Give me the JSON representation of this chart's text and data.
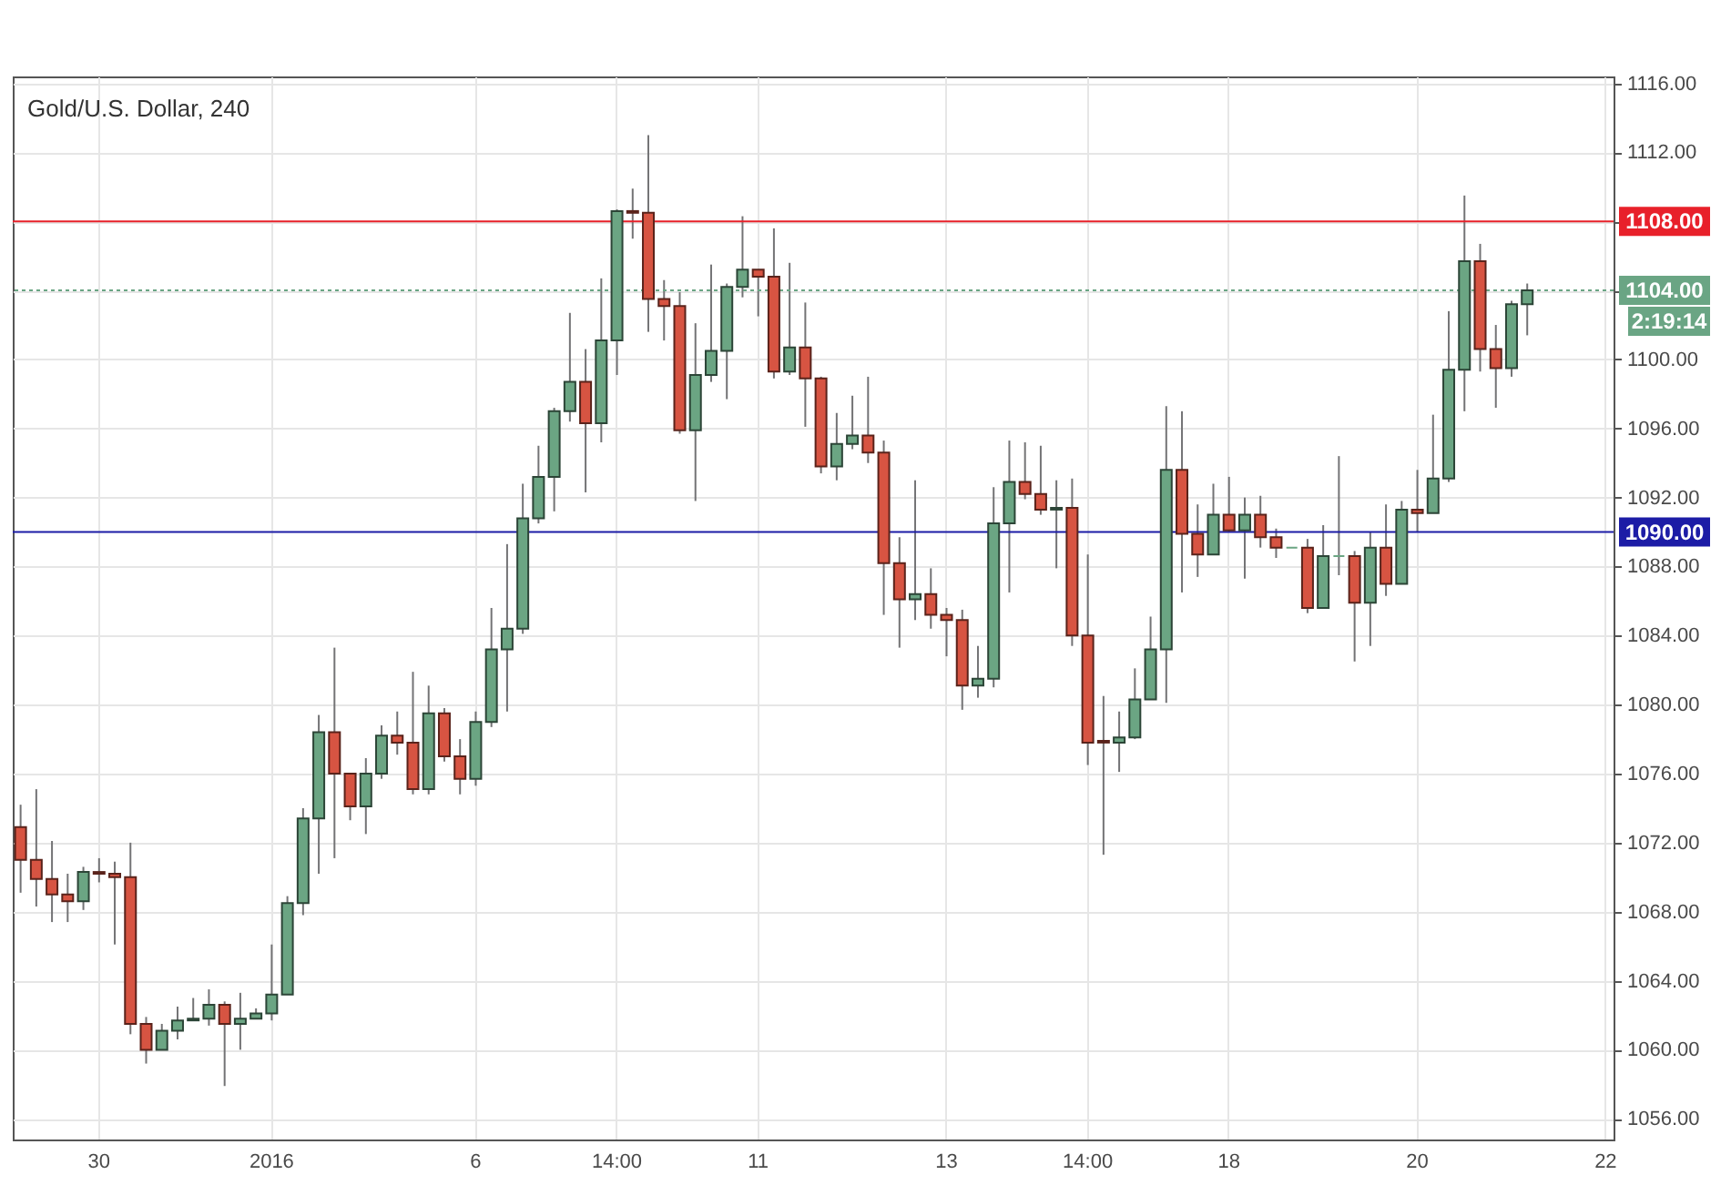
{
  "chart_data": {
    "type": "candlestick",
    "title": "Gold/U.S. Dollar, 240",
    "categories": [
      null,
      null,
      null,
      null,
      null,
      "30",
      null,
      null,
      null,
      null,
      null,
      null,
      null,
      null,
      null,
      null,
      "2016",
      null,
      null,
      null,
      null,
      null,
      null,
      null,
      null,
      null,
      null,
      null,
      null,
      "6",
      null,
      null,
      null,
      null,
      null,
      null,
      null,
      null,
      "14:00",
      null,
      null,
      null,
      null,
      null,
      null,
      null,
      null,
      "11",
      null,
      null,
      null,
      null,
      null,
      null,
      null,
      null,
      null,
      null,
      null,
      "13",
      null,
      null,
      null,
      null,
      null,
      null,
      null,
      null,
      "14:00",
      null,
      null,
      null,
      null,
      null,
      null,
      null,
      null,
      "18",
      null,
      null,
      null,
      null,
      null,
      null,
      null,
      null,
      null,
      null,
      null,
      "20",
      null,
      null,
      null,
      null,
      null,
      null,
      null,
      null,
      null,
      null,
      null,
      "22"
    ],
    "ohlc": [
      [
        1072.9,
        1074.2,
        1069.1,
        1071.0
      ],
      [
        1071.0,
        1075.1,
        1068.3,
        1069.9
      ],
      [
        1069.9,
        1072.1,
        1067.4,
        1069.0
      ],
      [
        1069.0,
        1070.2,
        1067.4,
        1068.6
      ],
      [
        1068.6,
        1070.6,
        1068.1,
        1070.3
      ],
      [
        1070.3,
        1071.1,
        1069.7,
        1070.2
      ],
      [
        1070.2,
        1070.9,
        1066.1,
        1070.0
      ],
      [
        1070.0,
        1072.0,
        1060.9,
        1061.5
      ],
      [
        1061.5,
        1061.9,
        1059.2,
        1060.0
      ],
      [
        1060.0,
        1061.5,
        1060.0,
        1061.1
      ],
      [
        1061.1,
        1062.5,
        1060.6,
        1061.7
      ],
      [
        1061.7,
        1063.0,
        1061.7,
        1061.8
      ],
      [
        1061.8,
        1063.5,
        1061.4,
        1062.6
      ],
      [
        1062.6,
        1062.8,
        1057.9,
        1061.5
      ],
      [
        1061.5,
        1063.3,
        1060.0,
        1061.8
      ],
      [
        1061.8,
        1062.4,
        1061.8,
        1062.1
      ],
      [
        1062.1,
        1066.1,
        1061.7,
        1063.2
      ],
      [
        1063.2,
        1068.9,
        1063.2,
        1068.5
      ],
      [
        1068.5,
        1074.0,
        1067.8,
        1073.4
      ],
      [
        1073.4,
        1079.4,
        1070.2,
        1078.4
      ],
      [
        1078.4,
        1083.3,
        1071.1,
        1076.0
      ],
      [
        1076.0,
        1076.0,
        1073.3,
        1074.1
      ],
      [
        1074.1,
        1076.9,
        1072.5,
        1076.0
      ],
      [
        1076.0,
        1078.8,
        1075.7,
        1078.2
      ],
      [
        1078.2,
        1079.6,
        1077.1,
        1077.8
      ],
      [
        1077.8,
        1081.9,
        1074.8,
        1075.1
      ],
      [
        1075.1,
        1081.1,
        1074.8,
        1079.5
      ],
      [
        1079.5,
        1079.8,
        1076.7,
        1077.0
      ],
      [
        1077.0,
        1078.0,
        1074.8,
        1075.7
      ],
      [
        1075.7,
        1079.6,
        1075.3,
        1079.0
      ],
      [
        1079.0,
        1085.6,
        1078.7,
        1083.2
      ],
      [
        1083.2,
        1089.3,
        1079.6,
        1084.4
      ],
      [
        1084.4,
        1092.8,
        1084.1,
        1090.8
      ],
      [
        1090.8,
        1095.0,
        1090.5,
        1093.2
      ],
      [
        1093.2,
        1097.2,
        1091.2,
        1097.0
      ],
      [
        1097.0,
        1102.7,
        1096.4,
        1098.7
      ],
      [
        1098.7,
        1100.6,
        1092.3,
        1096.3
      ],
      [
        1096.3,
        1104.7,
        1095.2,
        1101.1
      ],
      [
        1101.1,
        1108.7,
        1099.1,
        1108.6
      ],
      [
        1108.6,
        1109.9,
        1107.0,
        1108.5
      ],
      [
        1108.5,
        1113.0,
        1101.6,
        1103.5
      ],
      [
        1103.5,
        1104.6,
        1101.1,
        1103.1
      ],
      [
        1103.1,
        1103.9,
        1095.7,
        1095.9
      ],
      [
        1095.9,
        1102.1,
        1091.8,
        1099.1
      ],
      [
        1099.1,
        1105.5,
        1098.7,
        1100.5
      ],
      [
        1100.5,
        1104.4,
        1097.7,
        1104.2
      ],
      [
        1104.2,
        1108.3,
        1103.6,
        1105.2
      ],
      [
        1105.2,
        1105.2,
        1102.5,
        1104.8
      ],
      [
        1104.8,
        1107.6,
        1098.9,
        1099.3
      ],
      [
        1099.3,
        1105.6,
        1099.1,
        1100.7
      ],
      [
        1100.7,
        1103.3,
        1096.1,
        1098.9
      ],
      [
        1098.9,
        1099.0,
        1093.4,
        1093.8
      ],
      [
        1093.8,
        1096.9,
        1093.0,
        1095.1
      ],
      [
        1095.1,
        1097.9,
        1094.8,
        1095.6
      ],
      [
        1095.6,
        1099.0,
        1094.0,
        1094.6
      ],
      [
        1094.6,
        1095.3,
        1085.2,
        1088.2
      ],
      [
        1088.2,
        1089.7,
        1083.3,
        1086.1
      ],
      [
        1086.1,
        1093.0,
        1084.9,
        1086.4
      ],
      [
        1086.4,
        1087.9,
        1084.4,
        1085.2
      ],
      [
        1085.2,
        1085.6,
        1082.8,
        1084.9
      ],
      [
        1084.9,
        1085.5,
        1079.7,
        1081.1
      ],
      [
        1081.1,
        1083.4,
        1080.4,
        1081.5
      ],
      [
        1081.5,
        1092.6,
        1081.0,
        1090.5
      ],
      [
        1090.5,
        1095.3,
        1086.5,
        1092.9
      ],
      [
        1092.9,
        1095.2,
        1091.9,
        1092.2
      ],
      [
        1092.2,
        1095.0,
        1091.0,
        1091.3
      ],
      [
        1091.3,
        1093.0,
        1087.9,
        1091.4
      ],
      [
        1091.4,
        1093.1,
        1083.4,
        1084.0
      ],
      [
        1084.0,
        1088.7,
        1076.5,
        1077.8
      ],
      [
        1077.9,
        1080.5,
        1071.3,
        1077.8
      ],
      [
        1077.8,
        1079.6,
        1076.1,
        1078.1
      ],
      [
        1078.1,
        1082.1,
        1078.0,
        1080.3
      ],
      [
        1080.3,
        1085.1,
        1080.3,
        1083.2
      ],
      [
        1083.2,
        1097.3,
        1080.1,
        1093.6
      ],
      [
        1093.6,
        1097.0,
        1086.5,
        1089.9
      ],
      [
        1089.9,
        1091.6,
        1087.4,
        1088.7
      ],
      [
        1088.7,
        1092.8,
        1088.7,
        1091.0
      ],
      [
        1091.0,
        1093.2,
        1090.0,
        1090.1
      ],
      [
        1090.1,
        1092.0,
        1087.3,
        1091.0
      ],
      [
        1091.0,
        1092.1,
        1089.1,
        1089.7
      ],
      [
        1089.7,
        1090.2,
        1088.5,
        1089.1
      ],
      [
        1089.1,
        1089.1,
        1089.1,
        1089.1
      ],
      [
        1089.1,
        1089.6,
        1085.3,
        1085.6
      ],
      [
        1085.6,
        1090.4,
        1085.6,
        1088.6
      ],
      [
        1088.6,
        1094.4,
        1087.5,
        1088.6
      ],
      [
        1088.6,
        1088.9,
        1082.5,
        1085.9
      ],
      [
        1085.9,
        1090.0,
        1083.4,
        1089.1
      ],
      [
        1089.1,
        1091.6,
        1086.3,
        1087.0
      ],
      [
        1087.0,
        1091.8,
        1087.0,
        1091.3
      ],
      [
        1091.3,
        1093.6,
        1090.0,
        1091.1
      ],
      [
        1091.1,
        1096.8,
        1091.1,
        1093.1
      ],
      [
        1093.1,
        1102.8,
        1092.9,
        1099.4
      ],
      [
        1099.4,
        1109.5,
        1097.0,
        1105.7
      ],
      [
        1105.7,
        1106.7,
        1099.3,
        1100.6
      ],
      [
        1100.6,
        1102.0,
        1097.2,
        1099.5
      ],
      [
        1099.5,
        1103.4,
        1099.0,
        1103.2
      ],
      [
        1103.2,
        1104.4,
        1101.4,
        1104.0
      ],
      null,
      null,
      null,
      null,
      null
    ],
    "colors": [
      "#d75442",
      "#d75442",
      "#d75442",
      "#d75442",
      "#6ba583",
      "#d75442",
      "#d75442",
      "#d75442",
      "#d75442",
      "#6ba583",
      "#6ba583",
      "#6ba583",
      "#6ba583",
      "#d75442",
      "#6ba583",
      "#6ba583",
      "#6ba583",
      "#6ba583",
      "#6ba583",
      "#6ba583",
      "#d75442",
      "#d75442",
      "#6ba583",
      "#6ba583",
      "#d75442",
      "#d75442",
      "#6ba583",
      "#d75442",
      "#d75442",
      "#6ba583",
      "#6ba583",
      "#6ba583",
      "#6ba583",
      "#6ba583",
      "#6ba583",
      "#6ba583",
      "#d75442",
      "#6ba583",
      "#6ba583",
      "#d75442",
      "#d75442",
      "#d75442",
      "#d75442",
      "#6ba583",
      "#6ba583",
      "#6ba583",
      "#6ba583",
      "#d75442",
      "#d75442",
      "#6ba583",
      "#d75442",
      "#d75442",
      "#6ba583",
      "#6ba583",
      "#d75442",
      "#d75442",
      "#d75442",
      "#6ba583",
      "#d75442",
      "#d75442",
      "#d75442",
      "#6ba583",
      "#6ba583",
      "#6ba583",
      "#d75442",
      "#d75442",
      "#6ba583",
      "#d75442",
      "#d75442",
      "#d75442",
      "#6ba583",
      "#6ba583",
      "#6ba583",
      "#6ba583",
      "#d75442",
      "#d75442",
      "#6ba583",
      "#d75442",
      "#6ba583",
      "#d75442",
      "#d75442",
      "#6ba583",
      "#d75442",
      "#6ba583",
      "#6ba583",
      "#d75442",
      "#6ba583",
      "#d75442",
      "#6ba583",
      "#d75442",
      "#6ba583",
      "#6ba583",
      "#6ba583",
      "#d75442",
      "#d75442",
      "#6ba583",
      "#6ba583",
      null,
      null,
      null,
      null,
      null
    ],
    "ylim": [
      1054.8,
      1116.4
    ],
    "yticks": [
      {
        "value": 1056,
        "label": "1056.00"
      },
      {
        "value": 1060,
        "label": "1060.00"
      },
      {
        "value": 1064,
        "label": "1064.00"
      },
      {
        "value": 1068,
        "label": "1068.00"
      },
      {
        "value": 1072,
        "label": "1072.00"
      },
      {
        "value": 1076,
        "label": "1076.00"
      },
      {
        "value": 1080,
        "label": "1080.00"
      },
      {
        "value": 1084,
        "label": "1084.00"
      },
      {
        "value": 1088,
        "label": "1088.00"
      },
      {
        "value": 1092,
        "label": "1092.00"
      },
      {
        "value": 1096,
        "label": "1096.00"
      },
      {
        "value": 1100,
        "label": "1100.00"
      },
      {
        "value": 1104,
        "label": null
      },
      {
        "value": 1108,
        "label": null
      },
      {
        "value": 1112,
        "label": "1112.00"
      },
      {
        "value": 1116,
        "label": "1116.00"
      }
    ],
    "grid": true,
    "ref_lines": [
      {
        "axis": "y",
        "value": 1108,
        "label": "1108.00",
        "color": "#e8202a",
        "line_style": "solid"
      },
      {
        "axis": "y",
        "value": 1090,
        "label": "1090.00",
        "color": "#1c1ca6",
        "line_style": "solid"
      },
      {
        "axis": "y",
        "value": 1104,
        "label": "1104.00",
        "color": "#6aa584",
        "line_style": "dotted"
      }
    ],
    "annotations": [
      "2:19:14"
    ]
  }
}
